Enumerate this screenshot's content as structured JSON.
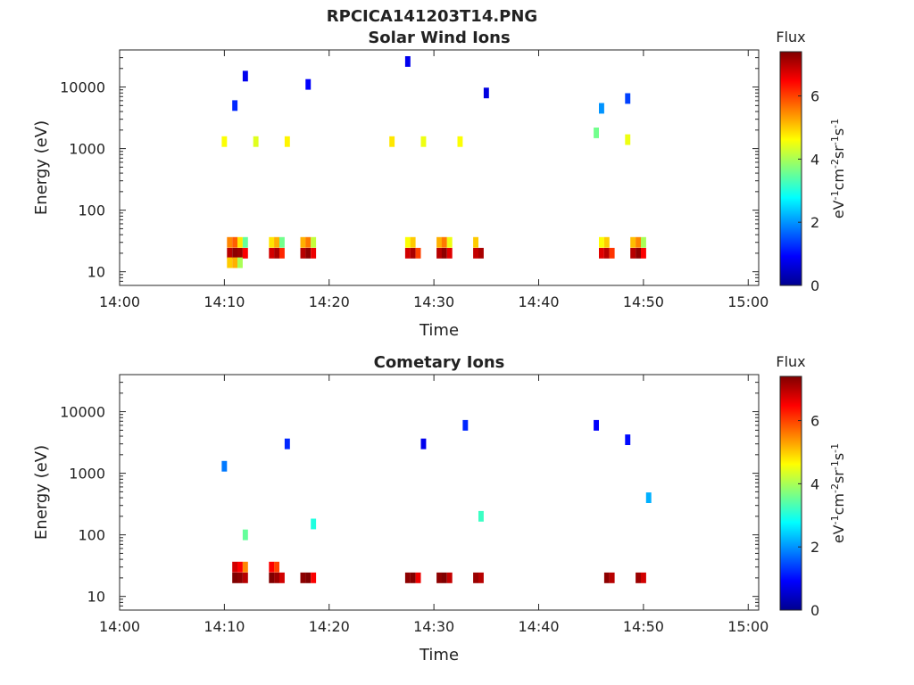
{
  "figure": {
    "title": "RPCICA141203T14.PNG"
  },
  "colorbar_label": "Flux",
  "colorbar_unit": [
    "eV",
    "-1",
    "cm",
    "-2",
    "sr",
    "-1",
    "s",
    "-1"
  ],
  "colorbar_range": [
    0,
    7.4
  ],
  "colorbar_ticks": [
    "0",
    "2",
    "4",
    "6"
  ],
  "chart_data": [
    {
      "type": "heatmap",
      "title": "Solar Wind Ions",
      "xlabel": "Time",
      "ylabel": "Energy (eV)",
      "x_range_minutes": [
        0,
        61
      ],
      "x_ticks": [
        "14:00",
        "14:10",
        "14:20",
        "14:30",
        "14:40",
        "14:50",
        "15:00"
      ],
      "y_scale": "log",
      "y_range": [
        6,
        40000
      ],
      "y_ticks": [
        "10",
        "100",
        "1000",
        "10000"
      ],
      "colorbar_label": "Flux",
      "colorbar_range": [
        0,
        7.4
      ],
      "cells": [
        [
          10.5,
          20,
          7.0
        ],
        [
          11.0,
          20,
          7.3
        ],
        [
          11.5,
          20,
          7.2
        ],
        [
          12.0,
          20,
          6.5
        ],
        [
          10.5,
          30,
          5.5
        ],
        [
          11.0,
          30,
          5.8
        ],
        [
          11.5,
          30,
          4.8
        ],
        [
          12.0,
          30,
          3.5
        ],
        [
          10.5,
          14,
          5.0
        ],
        [
          11.0,
          14,
          5.2
        ],
        [
          11.5,
          14,
          4.0
        ],
        [
          14.5,
          20,
          6.8
        ],
        [
          15.0,
          20,
          7.1
        ],
        [
          15.5,
          20,
          6.2
        ],
        [
          14.5,
          30,
          4.8
        ],
        [
          15.0,
          30,
          5.2
        ],
        [
          15.5,
          30,
          3.6
        ],
        [
          17.5,
          20,
          7.0
        ],
        [
          18.0,
          20,
          7.3
        ],
        [
          18.5,
          20,
          6.6
        ],
        [
          17.5,
          30,
          5.2
        ],
        [
          18.0,
          30,
          5.6
        ],
        [
          18.5,
          30,
          4.2
        ],
        [
          27.5,
          20,
          6.8
        ],
        [
          28.0,
          20,
          7.1
        ],
        [
          28.5,
          20,
          6.0
        ],
        [
          27.5,
          30,
          4.6
        ],
        [
          28.0,
          30,
          5.0
        ],
        [
          30.5,
          20,
          7.0
        ],
        [
          31.0,
          20,
          7.3
        ],
        [
          31.5,
          20,
          6.7
        ],
        [
          30.5,
          30,
          5.2
        ],
        [
          31.0,
          30,
          5.6
        ],
        [
          31.5,
          30,
          4.5
        ],
        [
          34.0,
          20,
          6.9
        ],
        [
          34.5,
          20,
          7.1
        ],
        [
          34.0,
          30,
          5.0
        ],
        [
          46.0,
          20,
          6.7
        ],
        [
          46.5,
          20,
          7.0
        ],
        [
          47.0,
          20,
          6.1
        ],
        [
          46.0,
          30,
          4.6
        ],
        [
          46.5,
          30,
          5.0
        ],
        [
          49.0,
          20,
          7.0
        ],
        [
          49.5,
          20,
          7.3
        ],
        [
          50.0,
          20,
          6.5
        ],
        [
          49.0,
          30,
          5.1
        ],
        [
          49.5,
          30,
          5.5
        ],
        [
          50.0,
          30,
          4.0
        ],
        [
          10.0,
          1300,
          4.6
        ],
        [
          13.0,
          1300,
          4.4
        ],
        [
          16.0,
          1300,
          4.7
        ],
        [
          26.0,
          1300,
          4.8
        ],
        [
          29.0,
          1300,
          4.5
        ],
        [
          32.5,
          1300,
          4.6
        ],
        [
          45.5,
          1800,
          3.6
        ],
        [
          48.5,
          1400,
          4.5
        ],
        [
          11.0,
          5000,
          1.2
        ],
        [
          12.0,
          15000,
          0.8
        ],
        [
          18.0,
          11000,
          0.9
        ],
        [
          27.5,
          26000,
          0.8
        ],
        [
          35.0,
          8000,
          0.7
        ],
        [
          48.5,
          6500,
          1.4
        ],
        [
          46.0,
          4500,
          2.0
        ]
      ]
    },
    {
      "type": "heatmap",
      "title": "Cometary Ions",
      "xlabel": "Time",
      "ylabel": "Energy (eV)",
      "x_range_minutes": [
        0,
        61
      ],
      "x_ticks": [
        "14:00",
        "14:10",
        "14:20",
        "14:30",
        "14:40",
        "14:50",
        "15:00"
      ],
      "y_scale": "log",
      "y_range": [
        6,
        40000
      ],
      "y_ticks": [
        "10",
        "100",
        "1000",
        "10000"
      ],
      "colorbar_label": "Flux",
      "colorbar_range": [
        0,
        7.4
      ],
      "cells": [
        [
          11.0,
          20,
          7.4
        ],
        [
          11.5,
          20,
          7.3
        ],
        [
          12.0,
          20,
          7.0
        ],
        [
          11.0,
          30,
          6.8
        ],
        [
          11.5,
          30,
          6.5
        ],
        [
          12.0,
          30,
          5.5
        ],
        [
          14.5,
          20,
          7.4
        ],
        [
          15.0,
          20,
          7.2
        ],
        [
          15.5,
          20,
          6.8
        ],
        [
          14.5,
          30,
          6.5
        ],
        [
          15.0,
          30,
          6.0
        ],
        [
          17.5,
          20,
          7.3
        ],
        [
          18.0,
          20,
          7.4
        ],
        [
          18.5,
          20,
          6.5
        ],
        [
          27.5,
          20,
          7.3
        ],
        [
          28.0,
          20,
          7.4
        ],
        [
          28.5,
          20,
          6.6
        ],
        [
          30.5,
          20,
          7.3
        ],
        [
          31.0,
          20,
          7.4
        ],
        [
          31.5,
          20,
          6.9
        ],
        [
          34.0,
          20,
          7.2
        ],
        [
          34.5,
          20,
          7.0
        ],
        [
          46.5,
          20,
          7.3
        ],
        [
          47.0,
          20,
          7.0
        ],
        [
          49.5,
          20,
          7.2
        ],
        [
          50.0,
          20,
          6.8
        ],
        [
          12.0,
          100,
          3.5
        ],
        [
          18.5,
          150,
          3.0
        ],
        [
          34.5,
          200,
          3.2
        ],
        [
          50.5,
          400,
          2.2
        ],
        [
          10.0,
          1300,
          1.8
        ],
        [
          16.0,
          3000,
          1.2
        ],
        [
          29.0,
          3000,
          0.8
        ],
        [
          33.0,
          6000,
          1.2
        ],
        [
          45.5,
          6000,
          0.9
        ],
        [
          48.5,
          3500,
          1.0
        ]
      ]
    }
  ]
}
